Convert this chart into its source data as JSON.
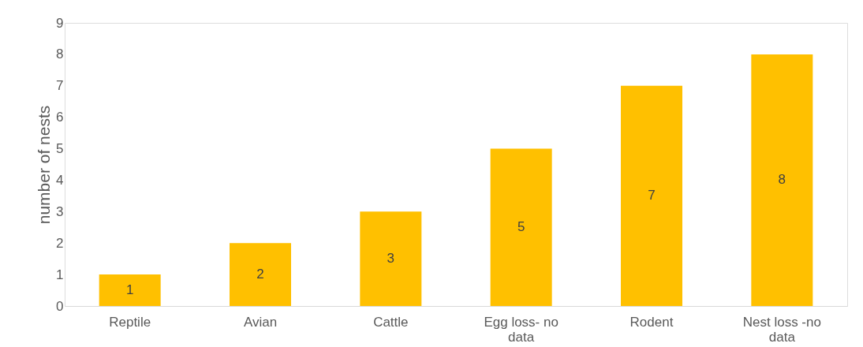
{
  "chart_data": {
    "type": "bar",
    "ylabel": "number of nests",
    "categories": [
      "Reptile",
      "Avian",
      "Cattle",
      "Egg loss- no data",
      "Rodent",
      "Nest loss -no data"
    ],
    "values": [
      1,
      2,
      3,
      5,
      7,
      8
    ],
    "color": "#ffc000",
    "data_labels": true,
    "ylim": [
      0,
      9
    ],
    "yticks": [
      0,
      1,
      2,
      3,
      4,
      5,
      6,
      7,
      8,
      9
    ],
    "grid": false
  }
}
